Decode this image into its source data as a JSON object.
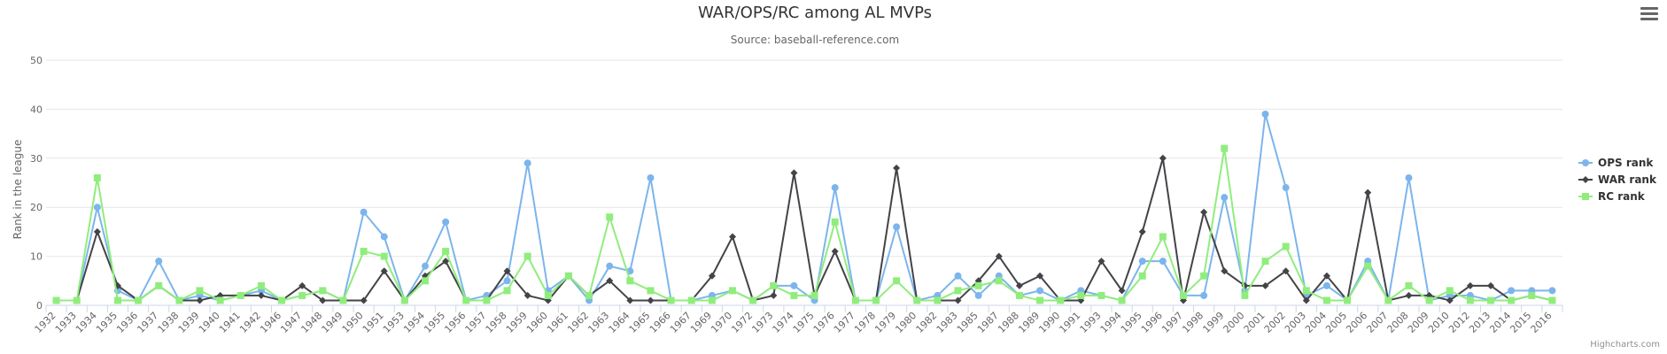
{
  "chart_data": {
    "type": "line",
    "title": "WAR/OPS/RC among AL MVPs",
    "subtitle": "Source: baseball-reference.com",
    "ylabel": "Rank in the league",
    "xlabel": "",
    "ylim": [
      0,
      50
    ],
    "yticks": [
      0,
      10,
      20,
      30,
      40,
      50
    ],
    "grid": true,
    "legend_position": "right",
    "credits": "Highcharts.com",
    "categories": [
      "1932",
      "1933",
      "1934",
      "1935",
      "1936",
      "1937",
      "1938",
      "1939",
      "1940",
      "1941",
      "1942",
      "1946",
      "1947",
      "1948",
      "1949",
      "1950",
      "1951",
      "1953",
      "1954",
      "1955",
      "1956",
      "1957",
      "1958",
      "1959",
      "1960",
      "1961",
      "1962",
      "1963",
      "1964",
      "1965",
      "1966",
      "1967",
      "1969",
      "1970",
      "1972",
      "1973",
      "1974",
      "1975",
      "1976",
      "1977",
      "1978",
      "1979",
      "1980",
      "1982",
      "1983",
      "1985",
      "1987",
      "1988",
      "1989",
      "1990",
      "1991",
      "1993",
      "1994",
      "1995",
      "1996",
      "1997",
      "1998",
      "1999",
      "2000",
      "2001",
      "2002",
      "2003",
      "2004",
      "2005",
      "2006",
      "2007",
      "2008",
      "2009",
      "2010",
      "2012",
      "2013",
      "2014",
      "2015",
      "2016"
    ],
    "series": [
      {
        "name": "OPS rank",
        "color": "#7cb5ec",
        "marker": "circle",
        "values": [
          1,
          1,
          20,
          3,
          1,
          9,
          1,
          2,
          1,
          2,
          3,
          1,
          2,
          3,
          1,
          19,
          14,
          1,
          8,
          17,
          1,
          2,
          5,
          29,
          3,
          6,
          1,
          8,
          7,
          26,
          1,
          1,
          2,
          3,
          1,
          4,
          4,
          1,
          24,
          1,
          1,
          16,
          1,
          2,
          6,
          2,
          6,
          2,
          3,
          1,
          3,
          2,
          1,
          9,
          9,
          2,
          2,
          22,
          3,
          39,
          24,
          2,
          4,
          1,
          9,
          1,
          26,
          1,
          2,
          2,
          1,
          3,
          3,
          3
        ]
      },
      {
        "name": "WAR rank",
        "color": "#434348",
        "marker": "diamond",
        "values": [
          1,
          1,
          15,
          4,
          1,
          4,
          1,
          1,
          2,
          2,
          2,
          1,
          4,
          1,
          1,
          1,
          7,
          1,
          6,
          9,
          1,
          1,
          7,
          2,
          1,
          6,
          2,
          5,
          1,
          1,
          1,
          1,
          6,
          14,
          1,
          2,
          27,
          2,
          11,
          1,
          1,
          28,
          1,
          1,
          1,
          5,
          10,
          4,
          6,
          1,
          1,
          9,
          3,
          15,
          30,
          1,
          19,
          7,
          4,
          4,
          7,
          1,
          6,
          1,
          23,
          1,
          2,
          2,
          1,
          4,
          4,
          1,
          2,
          1
        ]
      },
      {
        "name": "RC rank",
        "color": "#90ed7d",
        "marker": "square",
        "values": [
          1,
          1,
          26,
          1,
          1,
          4,
          1,
          3,
          1,
          2,
          4,
          1,
          2,
          3,
          1,
          11,
          10,
          1,
          5,
          11,
          1,
          1,
          3,
          10,
          2,
          6,
          2,
          18,
          5,
          3,
          1,
          1,
          1,
          3,
          1,
          4,
          2,
          2,
          17,
          1,
          1,
          5,
          1,
          1,
          3,
          4,
          5,
          2,
          1,
          1,
          2,
          2,
          1,
          6,
          14,
          2,
          6,
          32,
          2,
          9,
          12,
          3,
          1,
          1,
          8,
          1,
          4,
          1,
          3,
          1,
          1,
          1,
          2,
          1
        ]
      }
    ]
  },
  "ui": {
    "menu_icon": "hamburger-menu-icon"
  }
}
